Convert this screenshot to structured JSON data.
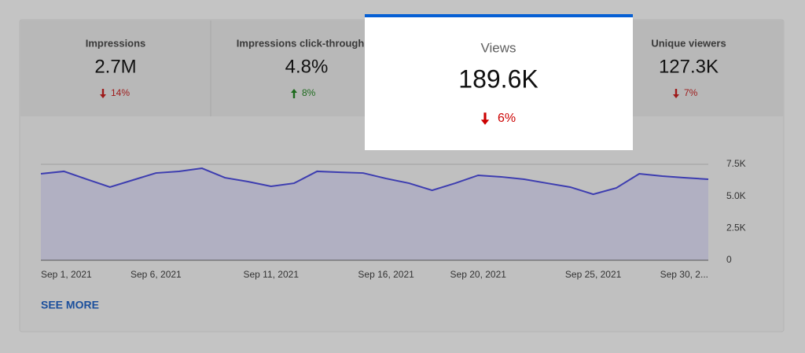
{
  "metrics": [
    {
      "label": "Impressions",
      "value": "2.7M",
      "change": "14%",
      "direction": "down"
    },
    {
      "label": "Impressions click-through ra",
      "value": "4.8%",
      "change": "8%",
      "direction": "up"
    },
    {
      "label": "Unique viewers",
      "value": "127.3K",
      "change": "7%",
      "direction": "down"
    }
  ],
  "highlight": {
    "label": "Views",
    "value": "189.6K",
    "change": "6%",
    "direction": "down"
  },
  "chart_data": {
    "type": "area",
    "categories": [
      "Sep 1, 2021",
      null,
      null,
      null,
      null,
      "Sep 6, 2021",
      null,
      null,
      null,
      null,
      "Sep 11, 2021",
      null,
      null,
      null,
      null,
      "Sep 16, 2021",
      null,
      null,
      null,
      "Sep 20, 2021",
      null,
      null,
      null,
      null,
      "Sep 25, 2021",
      null,
      null,
      null,
      null,
      "Sep 30, 2..."
    ],
    "values": [
      6760,
      6950,
      6330,
      5720,
      6270,
      6820,
      6950,
      7190,
      6450,
      6150,
      5780,
      6020,
      6950,
      6880,
      6820,
      6390,
      6020,
      5470,
      6020,
      6640,
      6520,
      6330,
      6020,
      5720,
      5160,
      5650,
      6760,
      6580,
      6450,
      6330
    ],
    "color": "#3d3db0",
    "ylim": [
      0,
      7500
    ],
    "yticks": [
      0,
      {
        "value": 2500,
        "label": "2.5K"
      },
      {
        "value": 5000,
        "label": "5.0K"
      },
      {
        "value": 7500,
        "label": "7.5K"
      }
    ],
    "grid": true
  },
  "link": "SEE MORE"
}
